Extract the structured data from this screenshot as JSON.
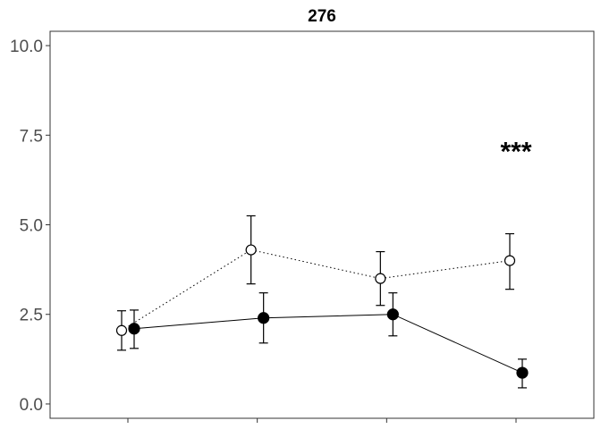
{
  "chart_data": {
    "type": "line",
    "title": "276",
    "xlabel": "",
    "ylabel": "",
    "ylim": [
      -0.4,
      10.4
    ],
    "yticks": [
      0.0,
      2.5,
      5.0,
      7.5,
      10.0
    ],
    "ytick_labels": [
      "0.0",
      "2.5",
      "5.0",
      "7.5",
      "10.0"
    ],
    "x": [
      1,
      2,
      3,
      4
    ],
    "xtick_labels": [
      "",
      "",
      "",
      ""
    ],
    "grid": false,
    "series": [
      {
        "marker": "open-circle",
        "line_style": "dotted",
        "color": "#000000",
        "values": [
          2.05,
          4.3,
          3.5,
          4.0
        ],
        "err_low": [
          1.5,
          3.35,
          2.75,
          3.2
        ],
        "err_high": [
          2.6,
          5.25,
          4.25,
          4.75
        ]
      },
      {
        "marker": "filled-circle",
        "line_style": "solid",
        "color": "#000000",
        "values": [
          2.1,
          2.4,
          2.5,
          0.87
        ],
        "err_low": [
          1.55,
          1.7,
          1.9,
          0.45
        ],
        "err_high": [
          2.62,
          3.1,
          3.1,
          1.25
        ]
      }
    ],
    "annotations": [
      {
        "text": "***",
        "x": 4,
        "y": 7.1
      }
    ]
  }
}
